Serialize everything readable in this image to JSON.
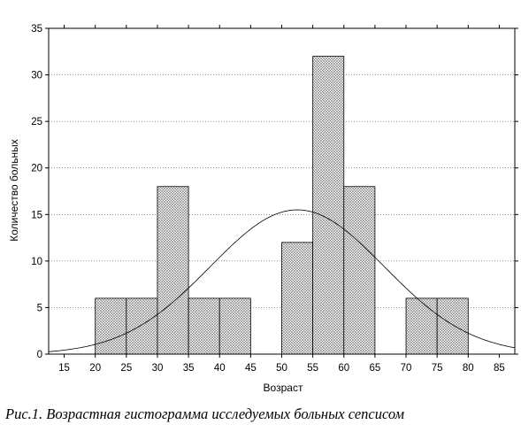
{
  "chart_data": {
    "type": "bar",
    "subtype": "histogram",
    "xlabel": "Возраст",
    "ylabel": "Количество больных",
    "xlim": [
      12.5,
      87.5
    ],
    "ylim": [
      0,
      35
    ],
    "xticks": [
      15,
      20,
      25,
      30,
      35,
      40,
      45,
      50,
      55,
      60,
      65,
      70,
      75,
      80,
      85
    ],
    "yticks": [
      0,
      5,
      10,
      15,
      20,
      25,
      30,
      35
    ],
    "bins": [
      {
        "from": 20,
        "to": 25,
        "value": 6
      },
      {
        "from": 25,
        "to": 30,
        "value": 6
      },
      {
        "from": 30,
        "to": 35,
        "value": 18
      },
      {
        "from": 35,
        "to": 40,
        "value": 6
      },
      {
        "from": 40,
        "to": 45,
        "value": 6
      },
      {
        "from": 50,
        "to": 55,
        "value": 12
      },
      {
        "from": 55,
        "to": 60,
        "value": 32
      },
      {
        "from": 60,
        "to": 65,
        "value": 18
      },
      {
        "from": 70,
        "to": 75,
        "value": 6
      },
      {
        "from": 75,
        "to": 80,
        "value": 6
      }
    ],
    "normal_curve": {
      "mean": 52.5,
      "peak": 15.5,
      "sd": 14
    },
    "grid": true,
    "bar_pattern": "crosshatch"
  },
  "caption": "Рис.1. Возрастная гистограмма исследуемых больных сепсисом"
}
